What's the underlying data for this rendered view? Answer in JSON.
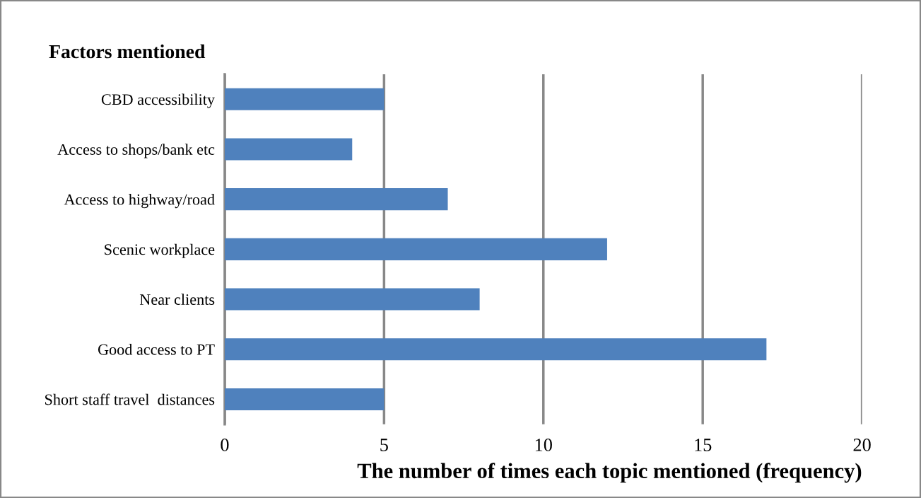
{
  "chart_data": {
    "type": "bar",
    "orientation": "horizontal",
    "ylabel": "Factors mentioned",
    "xlabel": "The number of times each topic mentioned (frequency)",
    "categories": [
      "CBD accessibility",
      "Access to shops/bank etc",
      "Access to highway/road",
      "Scenic workplace",
      "Near clients",
      "Good access to PT",
      "Short staff travel  distances"
    ],
    "values": [
      5,
      4,
      7,
      12,
      8,
      17,
      5
    ],
    "color": "#4f81bd",
    "xlim": [
      0,
      20
    ],
    "xticks": [
      0,
      5,
      10,
      15,
      20
    ],
    "grid": "x"
  }
}
